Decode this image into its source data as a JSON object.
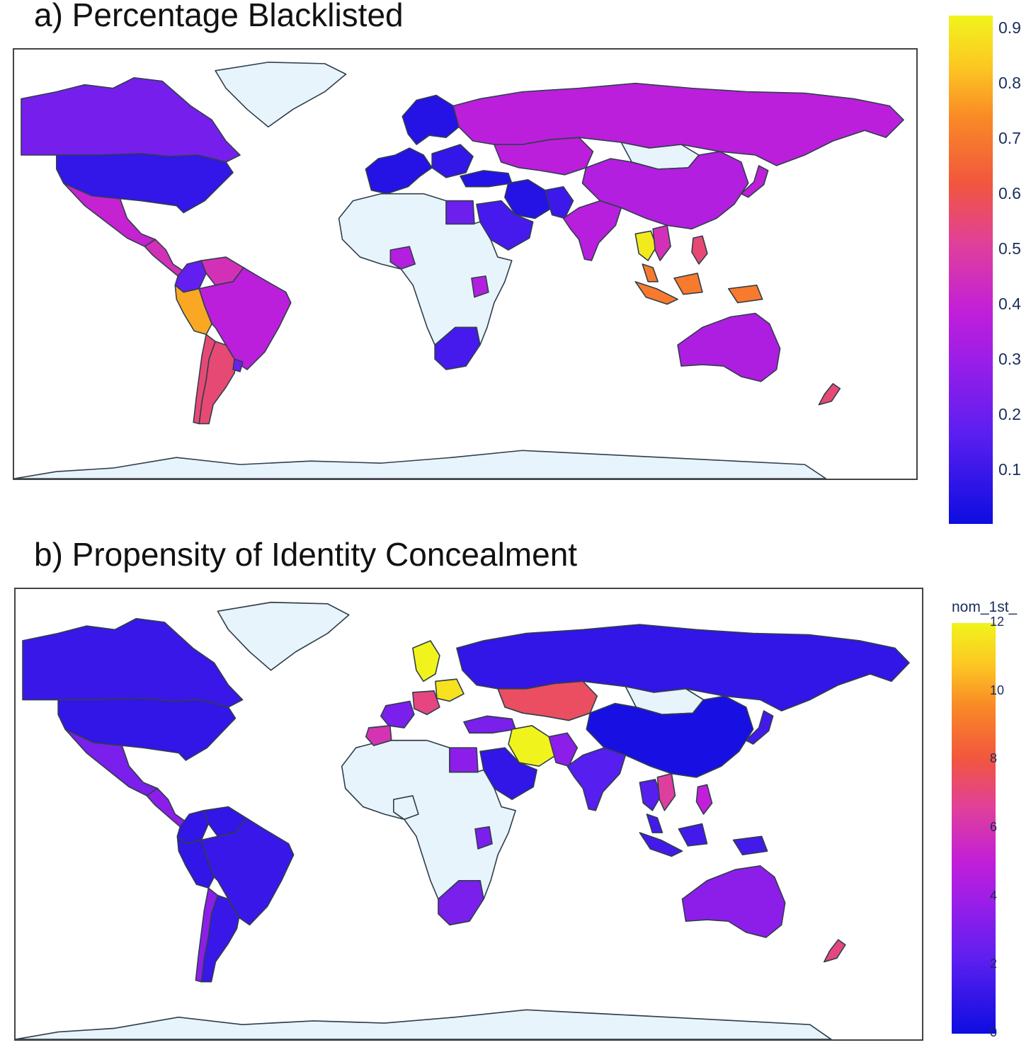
{
  "panel_a": {
    "title": "a) Percentage Blacklisted",
    "colorbar": {
      "title": "",
      "range": [
        0,
        0.92
      ],
      "ticks": [
        "0.1",
        "0.2",
        "0.3",
        "0.4",
        "0.5",
        "0.6",
        "0.7",
        "0.8",
        "0.9"
      ]
    },
    "colors": {
      "no_data": "#e8f4fb",
      "low": "#0d0de0",
      "high": "#f1f41c"
    }
  },
  "panel_b": {
    "title": "b) Propensity of Identity Concealment",
    "colorbar": {
      "title": "nom_1st_",
      "range": [
        0,
        12
      ],
      "ticks": [
        "0",
        "2",
        "4",
        "6",
        "8",
        "10",
        "12"
      ]
    },
    "colors": {
      "no_data": "#e8f4fb",
      "low": "#0d0de0",
      "high": "#f1f41c"
    }
  },
  "chart_data": [
    {
      "type": "choropleth",
      "title": "a) Percentage Blacklisted",
      "value_range": [
        0,
        0.92
      ],
      "colorscale": "plasma",
      "regions": [
        {
          "name": "Canada",
          "value": 0.22
        },
        {
          "name": "United States",
          "value": 0.08
        },
        {
          "name": "Mexico",
          "value": 0.4
        },
        {
          "name": "Central America",
          "value": 0.45
        },
        {
          "name": "Colombia",
          "value": 0.18
        },
        {
          "name": "Venezuela",
          "value": 0.45
        },
        {
          "name": "Peru",
          "value": 0.78
        },
        {
          "name": "Brazil",
          "value": 0.37
        },
        {
          "name": "Argentina",
          "value": 0.55
        },
        {
          "name": "Chile",
          "value": 0.55
        },
        {
          "name": "Uruguay",
          "value": 0.2
        },
        {
          "name": "Greenland",
          "value": null
        },
        {
          "name": "Scandinavia",
          "value": 0.05
        },
        {
          "name": "Western Europe",
          "value": 0.05
        },
        {
          "name": "Eastern Europe",
          "value": 0.08
        },
        {
          "name": "Russia",
          "value": 0.37
        },
        {
          "name": "Kazakhstan",
          "value": 0.37
        },
        {
          "name": "Mongolia",
          "value": null
        },
        {
          "name": "China",
          "value": 0.35
        },
        {
          "name": "Japan",
          "value": 0.38
        },
        {
          "name": "Turkey",
          "value": 0.05
        },
        {
          "name": "Iran",
          "value": 0.05
        },
        {
          "name": "Saudi Arabia",
          "value": 0.12
        },
        {
          "name": "Egypt",
          "value": 0.2
        },
        {
          "name": "Pakistan",
          "value": 0.1
        },
        {
          "name": "India",
          "value": 0.36
        },
        {
          "name": "Thailand",
          "value": 0.9
        },
        {
          "name": "Vietnam",
          "value": 0.45
        },
        {
          "name": "Philippines",
          "value": 0.55
        },
        {
          "name": "Malaysia",
          "value": 0.7
        },
        {
          "name": "Indonesia",
          "value": 0.7
        },
        {
          "name": "Nigeria",
          "value": 0.35
        },
        {
          "name": "Kenya",
          "value": 0.35
        },
        {
          "name": "South Africa",
          "value": 0.12
        },
        {
          "name": "Australia",
          "value": 0.34
        },
        {
          "name": "New Zealand",
          "value": 0.55
        }
      ]
    },
    {
      "type": "choropleth",
      "title": "b) Propensity of Identity Concealment",
      "colorbar_title": "nom_1st_",
      "value_range": [
        0,
        12
      ],
      "colorscale": "plasma",
      "regions": [
        {
          "name": "Canada",
          "value": 1.2
        },
        {
          "name": "United States",
          "value": 1.0
        },
        {
          "name": "Mexico",
          "value": 3.0
        },
        {
          "name": "Central America",
          "value": 3.5
        },
        {
          "name": "Colombia",
          "value": 1.0
        },
        {
          "name": "Venezuela",
          "value": 1.0
        },
        {
          "name": "Peru",
          "value": 1.0
        },
        {
          "name": "Brazil",
          "value": 1.2
        },
        {
          "name": "Argentina",
          "value": 1.2
        },
        {
          "name": "Chile",
          "value": 3.5
        },
        {
          "name": "Greenland",
          "value": null
        },
        {
          "name": "Sweden",
          "value": 12.0
        },
        {
          "name": "Germany",
          "value": 7.0
        },
        {
          "name": "Poland",
          "value": 11.5
        },
        {
          "name": "France",
          "value": 3.0
        },
        {
          "name": "Spain",
          "value": 6.0
        },
        {
          "name": "Russia",
          "value": 1.0
        },
        {
          "name": "Kazakhstan",
          "value": 7.5
        },
        {
          "name": "Mongolia",
          "value": null
        },
        {
          "name": "China",
          "value": 0.3
        },
        {
          "name": "Japan",
          "value": 1.5
        },
        {
          "name": "Turkey",
          "value": 3.0
        },
        {
          "name": "Iran",
          "value": 12.0
        },
        {
          "name": "Saudi Arabia",
          "value": 1.0
        },
        {
          "name": "Egypt",
          "value": 3.5
        },
        {
          "name": "Pakistan",
          "value": 3.5
        },
        {
          "name": "India",
          "value": 2.0
        },
        {
          "name": "Thailand",
          "value": 2.0
        },
        {
          "name": "Vietnam",
          "value": 6.5
        },
        {
          "name": "Philippines",
          "value": 5.0
        },
        {
          "name": "Malaysia",
          "value": 1.5
        },
        {
          "name": "Indonesia",
          "value": 1.5
        },
        {
          "name": "Nigeria",
          "value": null
        },
        {
          "name": "Kenya",
          "value": 3.0
        },
        {
          "name": "South Africa",
          "value": 3.0
        },
        {
          "name": "Australia",
          "value": 3.5
        },
        {
          "name": "New Zealand",
          "value": 7.0
        }
      ]
    }
  ]
}
